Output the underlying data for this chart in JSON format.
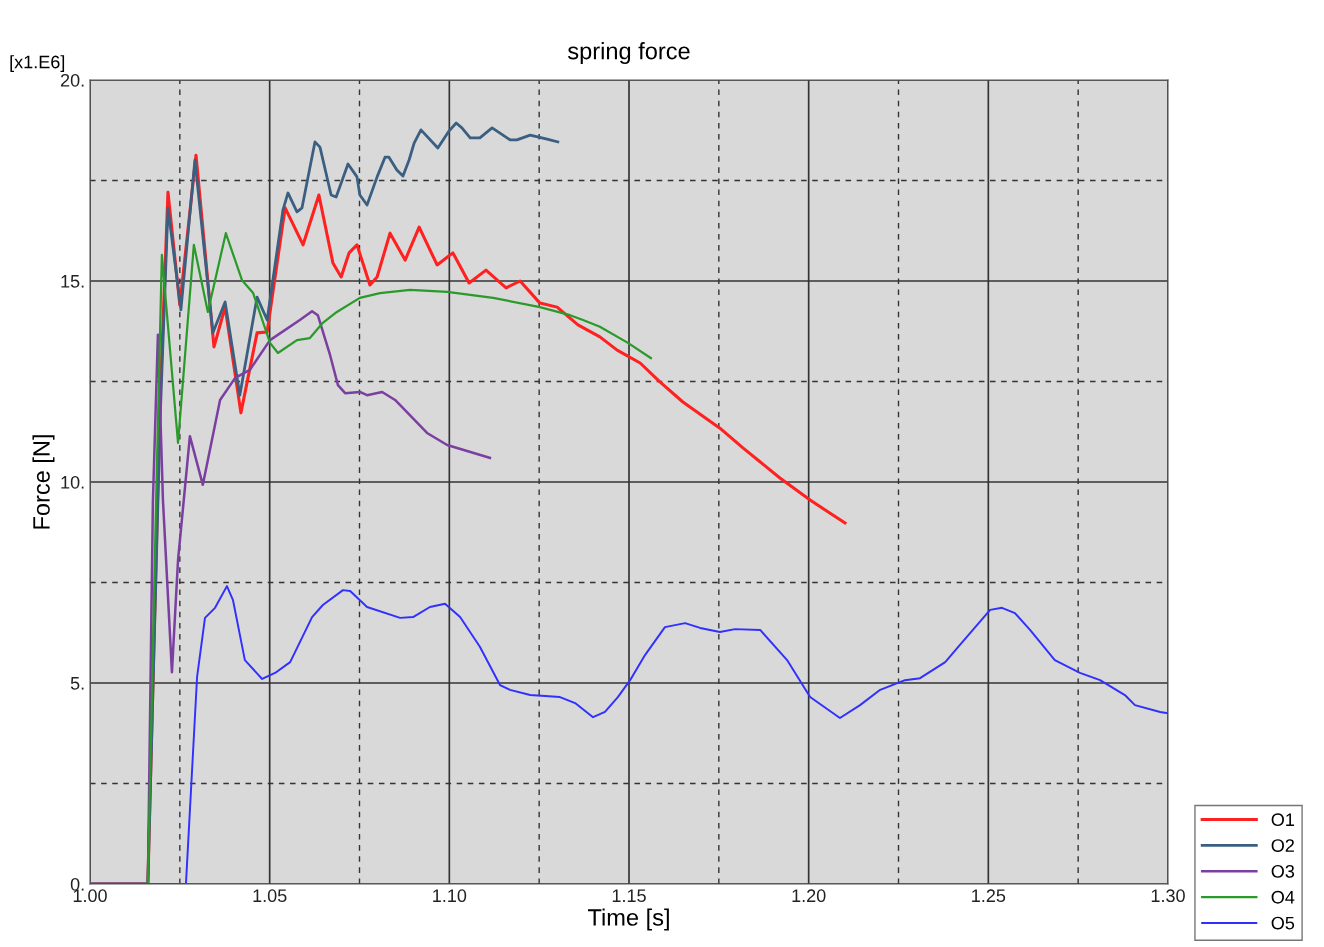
{
  "chart_data": {
    "type": "line",
    "title": "spring force",
    "xlabel": "Time [s]",
    "ylabel": "Force [N]",
    "annotations": [
      "[x1.E6]"
    ],
    "xlim": [
      1.0,
      1.3
    ],
    "ylim": [
      0,
      20
    ],
    "xticks": [
      {
        "value": 1.0,
        "label": "1.00"
      },
      {
        "value": 1.025,
        "label": null
      },
      {
        "value": 1.05,
        "label": "1.05"
      },
      {
        "value": 1.075,
        "label": null
      },
      {
        "value": 1.1,
        "label": "1.10"
      },
      {
        "value": 1.125,
        "label": null
      },
      {
        "value": 1.15,
        "label": "1.15"
      },
      {
        "value": 1.175,
        "label": null
      },
      {
        "value": 1.2,
        "label": "1.20"
      },
      {
        "value": 1.225,
        "label": null
      },
      {
        "value": 1.25,
        "label": "1.25"
      },
      {
        "value": 1.275,
        "label": null
      },
      {
        "value": 1.3,
        "label": "1.30"
      }
    ],
    "yticks": [
      {
        "value": 0,
        "label": "0."
      },
      {
        "value": 2.5,
        "label": null
      },
      {
        "value": 5,
        "label": "5."
      },
      {
        "value": 7.5,
        "label": null
      },
      {
        "value": 10,
        "label": "10."
      },
      {
        "value": 12.5,
        "label": null
      },
      {
        "value": 15,
        "label": "15."
      },
      {
        "value": 17.5,
        "label": null
      },
      {
        "value": 20,
        "label": "20."
      }
    ],
    "grid": true,
    "legend": "bottom right",
    "marker": "none",
    "line_style": "solid",
    "series": [
      {
        "name": "O1",
        "color": "#ff2020",
        "x": [
          1.0,
          1.0161,
          1.0195,
          1.0217,
          1.025,
          1.0295,
          1.0345,
          1.0376,
          1.042,
          1.0465,
          1.0493,
          1.0543,
          1.0593,
          1.0637,
          1.0676,
          1.0699,
          1.0721,
          1.0743,
          1.0779,
          1.0799,
          1.0835,
          1.0877,
          1.0916,
          1.0966,
          1.101,
          1.1055,
          1.1102,
          1.1158,
          1.1197,
          1.1252,
          1.13,
          1.1358,
          1.1419,
          1.1467,
          1.1531,
          1.1586,
          1.165,
          1.1753,
          1.1817,
          1.192,
          1.2004,
          1.2101
        ],
        "values": [
          0,
          0,
          12.04,
          17.21,
          14.4,
          18.13,
          13.36,
          14.35,
          11.72,
          13.71,
          13.73,
          16.82,
          15.9,
          17.14,
          15.45,
          15.1,
          15.7,
          15.9,
          14.9,
          15.1,
          16.19,
          15.52,
          16.34,
          15.4,
          15.7,
          14.95,
          15.27,
          14.83,
          15.0,
          14.45,
          14.35,
          13.91,
          13.61,
          13.28,
          12.96,
          12.49,
          11.99,
          11.34,
          10.85,
          10.1,
          9.55,
          8.98
        ]
      },
      {
        "name": "O2",
        "color": "#3a5f80",
        "x": [
          1.0,
          1.0161,
          1.0195,
          1.0217,
          1.0253,
          1.0292,
          1.0342,
          1.0376,
          1.0417,
          1.0465,
          1.0493,
          1.0537,
          1.0551,
          1.0576,
          1.059,
          1.0626,
          1.064,
          1.0671,
          1.0685,
          1.0718,
          1.0743,
          1.0751,
          1.0771,
          1.0799,
          1.0821,
          1.0832,
          1.0854,
          1.0871,
          1.0888,
          1.0902,
          1.0921,
          1.0968,
          1.0999,
          1.1019,
          1.1035,
          1.1058,
          1.1085,
          1.1119,
          1.1141,
          1.1169,
          1.1188,
          1.1225,
          1.1272,
          1.1302
        ],
        "values": [
          0,
          0,
          11.54,
          16.82,
          14.28,
          18.01,
          13.71,
          14.48,
          12.16,
          14.6,
          14.03,
          16.77,
          17.19,
          16.72,
          16.82,
          18.46,
          18.33,
          17.14,
          17.09,
          17.91,
          17.59,
          17.14,
          16.89,
          17.59,
          18.08,
          18.08,
          17.76,
          17.61,
          18.01,
          18.43,
          18.76,
          18.31,
          18.73,
          18.93,
          18.81,
          18.56,
          18.56,
          18.81,
          18.68,
          18.51,
          18.51,
          18.63,
          18.53,
          18.46
        ]
      },
      {
        "name": "O3",
        "color": "#7a3fa0",
        "x": [
          1.0,
          1.0161,
          1.0175,
          1.0189,
          1.0203,
          1.0228,
          1.0245,
          1.0278,
          1.0314,
          1.0362,
          1.0404,
          1.0445,
          1.0501,
          1.0584,
          1.0618,
          1.0634,
          1.0668,
          1.069,
          1.071,
          1.0751,
          1.0771,
          1.0813,
          1.0849,
          1.0938,
          1.0994,
          1.1113
        ],
        "values": [
          0,
          0,
          9.5,
          13.66,
          9.55,
          5.27,
          8.06,
          11.14,
          9.93,
          12.04,
          12.59,
          12.79,
          13.53,
          14.03,
          14.25,
          14.15,
          13.16,
          12.41,
          12.21,
          12.24,
          12.16,
          12.24,
          12.04,
          11.22,
          10.92,
          10.6
        ]
      },
      {
        "name": "O4",
        "color": "#2a9a2a",
        "x": [
          1.0,
          1.0161,
          1.0184,
          1.02,
          1.0245,
          1.0289,
          1.0328,
          1.0378,
          1.0423,
          1.0454,
          1.0501,
          1.0523,
          1.0576,
          1.0612,
          1.0648,
          1.0687,
          1.0751,
          1.0807,
          1.0891,
          1.0994,
          1.1122,
          1.1252,
          1.1336,
          1.1372,
          1.1419,
          1.1497,
          1.1561
        ],
        "values": [
          0,
          0,
          9.55,
          15.65,
          10.97,
          15.9,
          14.23,
          16.19,
          15.02,
          14.7,
          13.46,
          13.21,
          13.53,
          13.58,
          13.96,
          14.23,
          14.58,
          14.7,
          14.78,
          14.73,
          14.58,
          14.35,
          14.15,
          14.03,
          13.86,
          13.46,
          13.08
        ]
      },
      {
        "name": "O5",
        "color": "#3030ff",
        "x": [
          1.0,
          1.0267,
          1.0298,
          1.032,
          1.0348,
          1.0381,
          1.0398,
          1.0431,
          1.0479,
          1.0515,
          1.0557,
          1.0618,
          1.0648,
          1.0704,
          1.0724,
          1.0771,
          1.0863,
          1.0899,
          1.0946,
          1.0988,
          1.103,
          1.1085,
          1.1141,
          1.1169,
          1.1225,
          1.1308,
          1.135,
          1.14,
          1.1433,
          1.1469,
          1.1503,
          1.1545,
          1.16,
          1.1656,
          1.1698,
          1.1753,
          1.1795,
          1.1865,
          1.194,
          1.2004,
          1.2087,
          1.2143,
          1.2199,
          1.2268,
          1.231,
          1.238,
          1.2421,
          1.2505,
          1.2538,
          1.2574,
          1.2616,
          1.2685,
          1.2755,
          1.2811,
          1.288,
          1.2908,
          1.2978,
          1.3
        ],
        "values": [
          0,
          0,
          5.15,
          6.62,
          6.87,
          7.41,
          7.06,
          5.57,
          5.1,
          5.25,
          5.52,
          6.64,
          6.94,
          7.31,
          7.29,
          6.89,
          6.62,
          6.64,
          6.89,
          6.97,
          6.64,
          5.9,
          4.95,
          4.83,
          4.7,
          4.65,
          4.5,
          4.15,
          4.28,
          4.65,
          5.07,
          5.7,
          6.39,
          6.49,
          6.37,
          6.27,
          6.34,
          6.32,
          5.57,
          4.65,
          4.13,
          4.45,
          4.83,
          5.07,
          5.12,
          5.52,
          5.95,
          6.82,
          6.87,
          6.74,
          6.32,
          5.57,
          5.25,
          5.07,
          4.7,
          4.45,
          4.28,
          4.25
        ]
      }
    ]
  }
}
